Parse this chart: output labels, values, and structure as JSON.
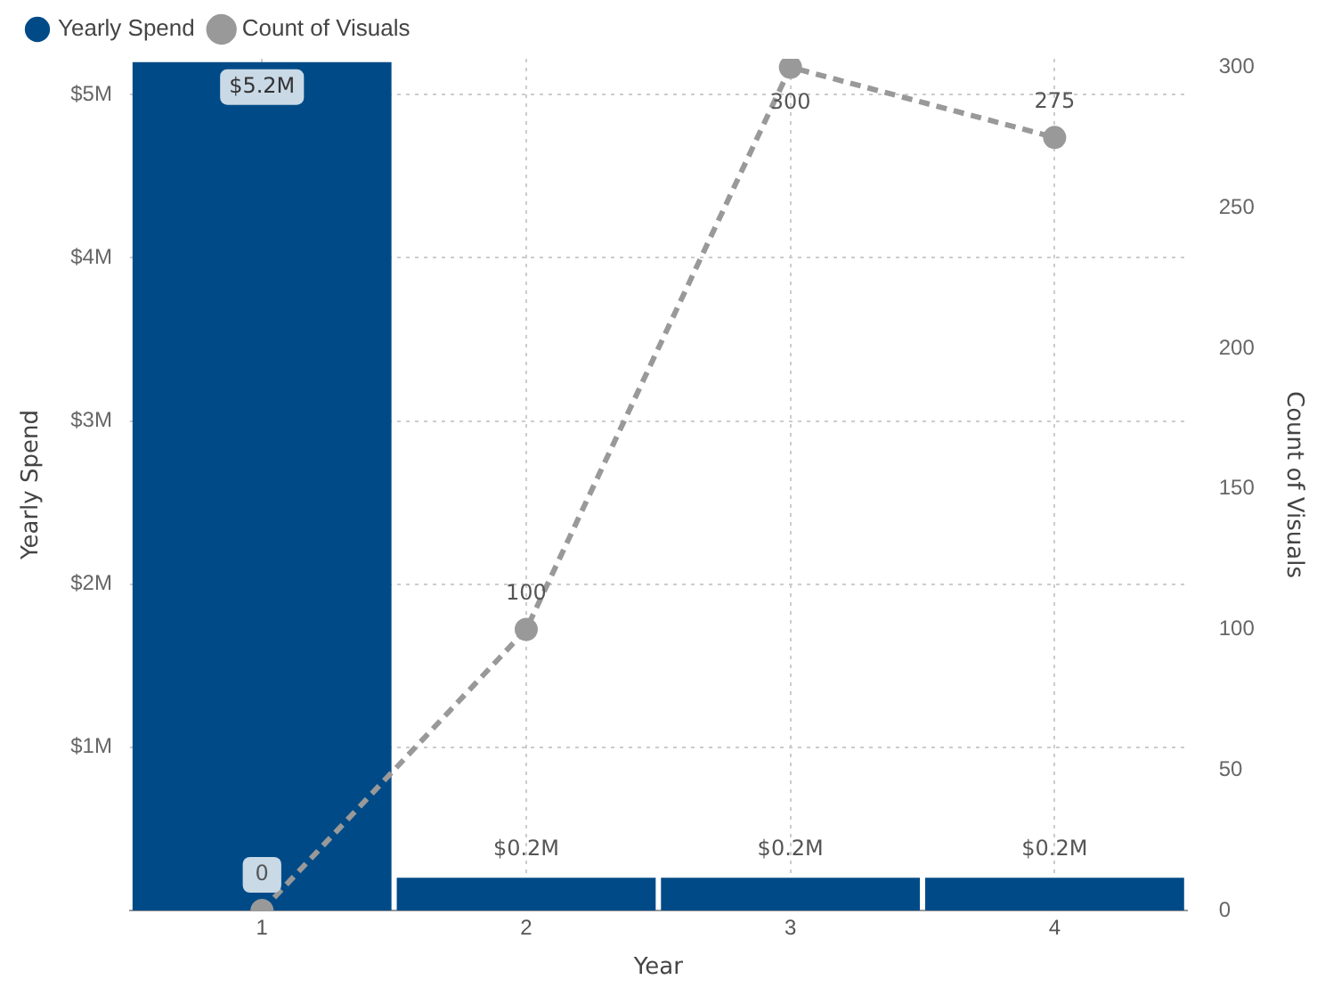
{
  "chart_data": {
    "type": "bar",
    "xlabel": "Year",
    "ylabel": "Yearly Spend",
    "y2label": "Count of Visuals",
    "categories": [
      "1",
      "2",
      "3",
      "4"
    ],
    "series": [
      {
        "name": "Yearly Spend",
        "color": "#004b87",
        "values": [
          5.2,
          0.2,
          0.2,
          0.2
        ],
        "value_labels": [
          "$5.2M",
          "$0.2M",
          "$0.2M",
          "$0.2M"
        ]
      },
      {
        "name": "Count of Visuals",
        "type": "line",
        "axis": "y2",
        "color": "#999999",
        "values": [
          0,
          100,
          300,
          275
        ],
        "value_labels": [
          "0",
          "100",
          "300",
          "275"
        ]
      }
    ],
    "ylim": [
      0,
      5.22
    ],
    "yticks": [
      {
        "value": 1,
        "label": "$1M"
      },
      {
        "value": 2,
        "label": "$2M"
      },
      {
        "value": 3,
        "label": "$3M"
      },
      {
        "value": 4,
        "label": "$4M"
      },
      {
        "value": 5,
        "label": "$5M"
      }
    ],
    "y2lim": [
      0,
      303
    ],
    "y2ticks": [
      0,
      50,
      100,
      150,
      200,
      250,
      300
    ],
    "grid": true,
    "legend": "top left",
    "marker": "circle",
    "line_style": "dashed"
  }
}
